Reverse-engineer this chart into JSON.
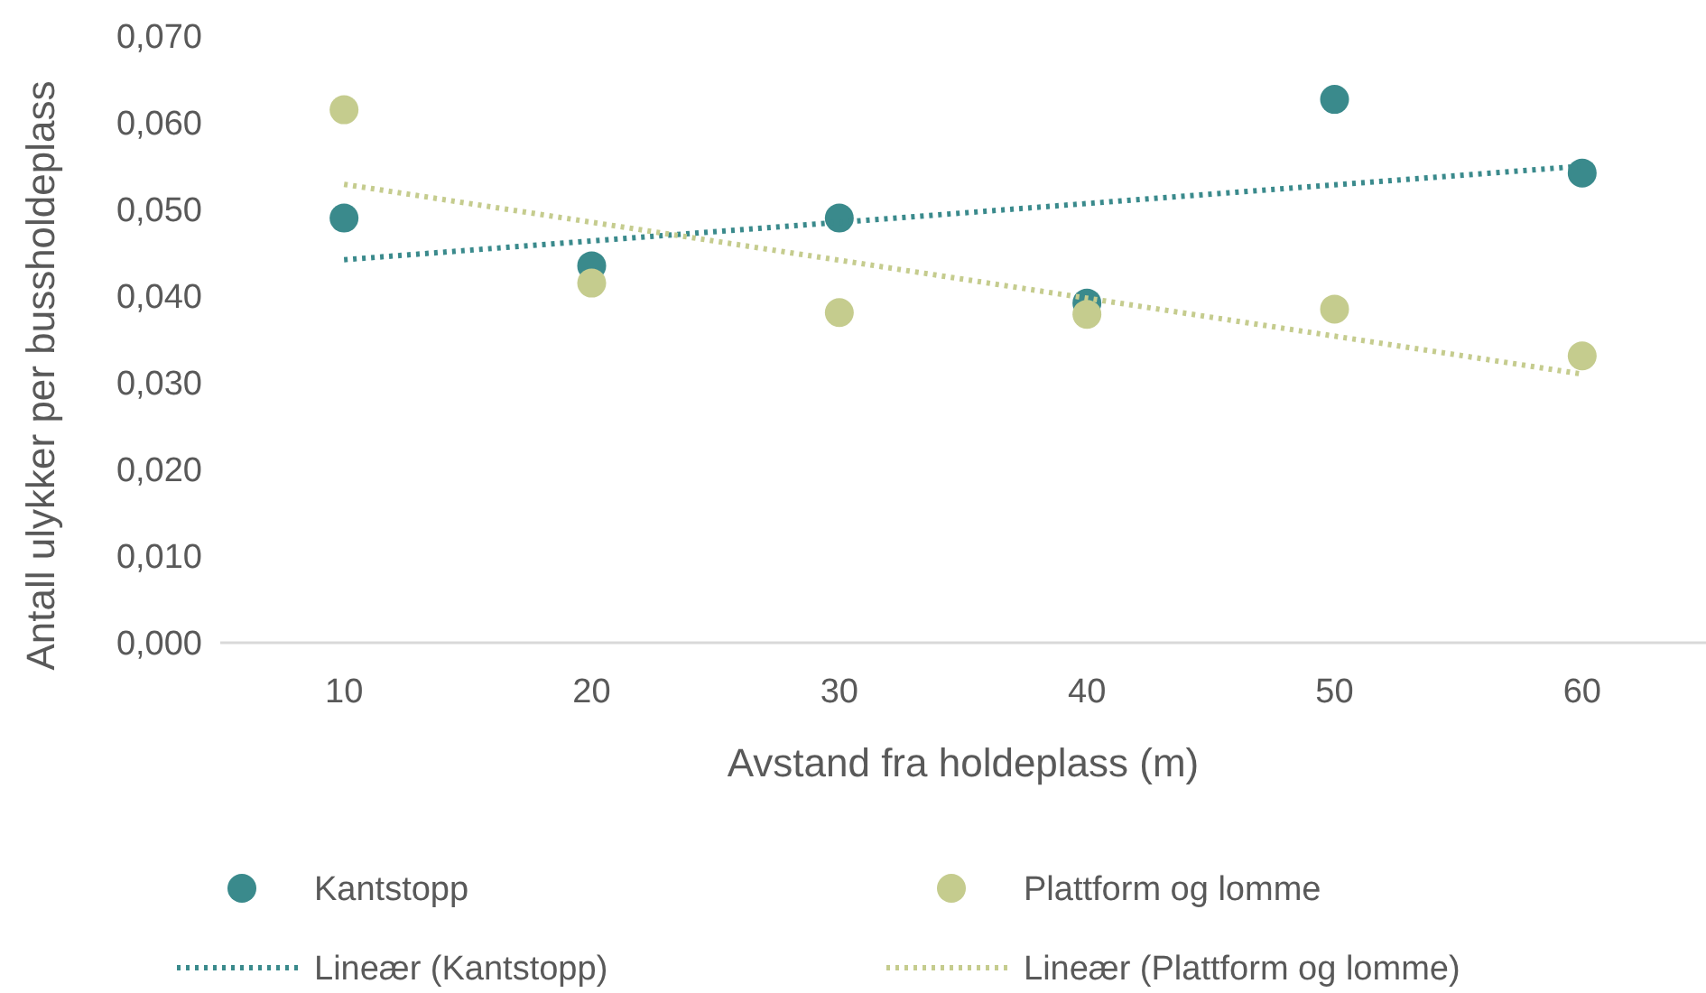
{
  "chart_data": {
    "type": "scatter",
    "xlabel": "Avstand fra holdeplass (m)",
    "ylabel": "Antall ulykker per bussholdeplass",
    "categories": [
      "10",
      "20",
      "30",
      "40",
      "50",
      "60"
    ],
    "ylim": [
      0,
      0.07
    ],
    "yticks": [
      {
        "value": 0,
        "label": "0,000"
      },
      {
        "value": 0.01,
        "label": "0,010"
      },
      {
        "value": 0.02,
        "label": "0,020"
      },
      {
        "value": 0.03,
        "label": "0,030"
      },
      {
        "value": 0.04,
        "label": "0,040"
      },
      {
        "value": 0.05,
        "label": "0,050"
      },
      {
        "value": 0.06,
        "label": "0,060"
      },
      {
        "value": 0.07,
        "label": "0,070"
      }
    ],
    "grid": false,
    "legend": "bottom",
    "marker": "circle",
    "series": [
      {
        "name": "Kantstopp",
        "color": "#3a8a8c",
        "values": [
          0.049,
          0.0435,
          0.049,
          0.0392,
          0.0627,
          0.0542
        ]
      },
      {
        "name": "Plattform og lomme",
        "color": "#c5cc8e",
        "values": [
          0.0615,
          0.0415,
          0.0381,
          0.0379,
          0.0385,
          0.0331
        ]
      },
      {
        "name": "Lineær (Kantstopp)",
        "type": "line",
        "line_style": "dotted",
        "marker": "none",
        "color": "#3a8a8c",
        "x": [
          "10",
          "60"
        ],
        "values": [
          0.0442,
          0.055
        ]
      },
      {
        "name": "Lineær (Plattform og lomme)",
        "type": "line",
        "line_style": "dotted",
        "marker": "none",
        "color": "#c5cc8e",
        "x": [
          "10",
          "60"
        ],
        "values": [
          0.0529,
          0.031
        ]
      }
    ]
  }
}
